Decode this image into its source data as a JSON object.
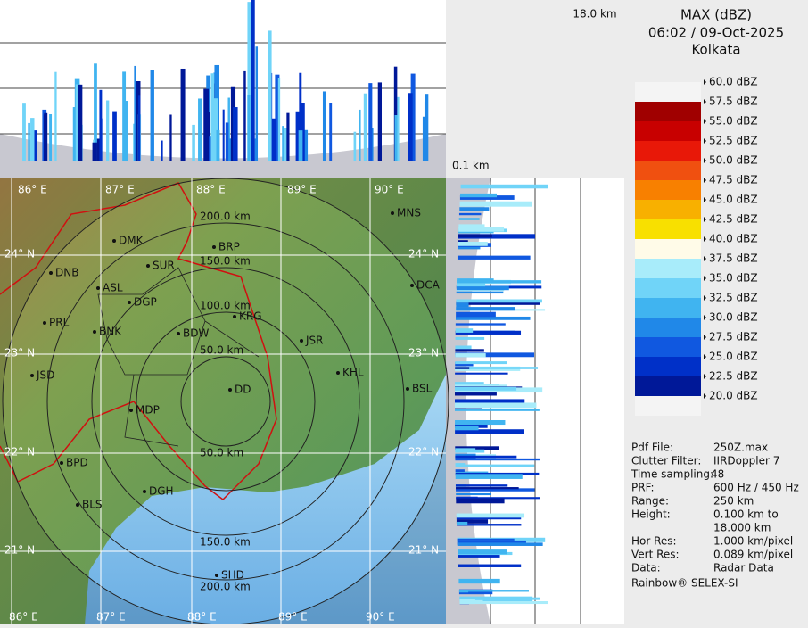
{
  "header": {
    "title": "MAX (dBZ)",
    "datetime": "06:02 / 09-Oct-2025",
    "station": "Kolkata"
  },
  "legend": {
    "items": [
      {
        "label": "60.0 dBZ",
        "color": "#f4f4f4"
      },
      {
        "label": "57.5 dBZ",
        "color": "#a00000"
      },
      {
        "label": "55.0 dBZ",
        "color": "#c80000"
      },
      {
        "label": "52.5 dBZ",
        "color": "#e81808"
      },
      {
        "label": "50.0 dBZ",
        "color": "#f05010"
      },
      {
        "label": "47.5 dBZ",
        "color": "#f88000"
      },
      {
        "label": "45.0 dBZ",
        "color": "#f8b000"
      },
      {
        "label": "42.5 dBZ",
        "color": "#f8e000"
      },
      {
        "label": "40.0 dBZ",
        "color": "#fffbe8"
      },
      {
        "label": "37.5 dBZ",
        "color": "#a8ecfa"
      },
      {
        "label": "35.0 dBZ",
        "color": "#70d4f8"
      },
      {
        "label": "32.5 dBZ",
        "color": "#40b4f0"
      },
      {
        "label": "30.0 dBZ",
        "color": "#2088e8"
      },
      {
        "label": "27.5 dBZ",
        "color": "#1058e0"
      },
      {
        "label": "25.0 dBZ",
        "color": "#0030c8"
      },
      {
        "label": "22.5 dBZ",
        "color": "#001898"
      },
      {
        "label": "20.0 dBZ",
        "color": "#f4f4f4"
      }
    ]
  },
  "profile": {
    "top_label": "18.0 km",
    "bottom_label": "0.1 km"
  },
  "map": {
    "lon_top": [
      "86° E",
      "87° E",
      "88° E",
      "89° E",
      "90° E"
    ],
    "lon_bottom": [
      "86° E",
      "87° E",
      "88° E",
      "89° E",
      "90° E"
    ],
    "lat_left": [
      "24° N",
      "23° N",
      "22° N",
      "21° N"
    ],
    "lat_right": [
      "24° N",
      "23° N",
      "22° N",
      "21° N"
    ],
    "range_north": [
      "200.0 km",
      "150.0 km",
      "100.0 km",
      "50.0 km"
    ],
    "range_south": [
      "50.0 km",
      "150.0 km",
      "200.0 km"
    ],
    "cities": [
      "DMK",
      "BRP",
      "DNB",
      "SUR",
      "ASL",
      "DGP",
      "PRL",
      "BNK",
      "BDW",
      "KRG",
      "JSR",
      "KHL",
      "JSD",
      "MDP",
      "BSL",
      "BPD",
      "DGH",
      "BLS",
      "SHD",
      "MNS",
      "DCA",
      "DD"
    ]
  },
  "info": {
    "rows": [
      {
        "label": "Pdf File:",
        "value": [
          "250Z.max"
        ]
      },
      {
        "label": "Clutter Filter:",
        "value": [
          "IIRDoppler 7"
        ]
      },
      {
        "label": "Time sampling:",
        "value": [
          "48"
        ]
      },
      {
        "label": "PRF:",
        "value": [
          "600 Hz / 450 Hz"
        ]
      },
      {
        "label": "Range:",
        "value": [
          "250 km"
        ]
      },
      {
        "label": "Height:",
        "value": [
          "0.100 km to",
          "18.000 km"
        ]
      },
      {
        "label": "Hor Res:",
        "value": [
          "1.000 km/pixel"
        ]
      },
      {
        "label": "Vert Res:",
        "value": [
          "0.089 km/pixel"
        ]
      },
      {
        "label": "Data:",
        "value": [
          "Radar Data"
        ]
      }
    ]
  },
  "footer": "Rainbow® SELEX-SI"
}
